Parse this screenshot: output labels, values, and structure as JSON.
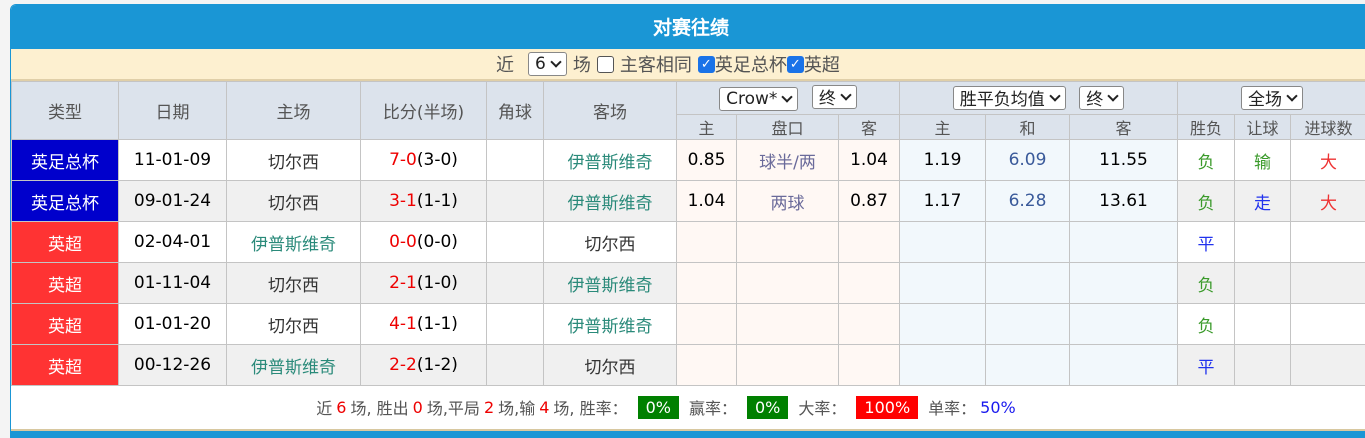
{
  "title": "对赛往绩",
  "filter": {
    "prefix": "近",
    "count": "6",
    "suffix": "场",
    "same_home_away": "主客相同",
    "leagues": [
      {
        "label": "英足总杯",
        "checked": true
      },
      {
        "label": "英超",
        "checked": true
      }
    ]
  },
  "header": {
    "type": "类型",
    "date": "日期",
    "home": "主场",
    "score": "比分(半场)",
    "corner": "角球",
    "away": "客场",
    "company_select": "Crow*",
    "odds_time_select": "终",
    "avg_select": "胜平负均值",
    "avg_time_select": "终",
    "period_select": "全场",
    "sub": [
      "主",
      "盘口",
      "客",
      "主",
      "和",
      "客",
      "胜负",
      "让球",
      "进球数"
    ]
  },
  "rows": [
    {
      "type": "英足总杯",
      "kind": "cup",
      "date": "11-01-09",
      "home": "切尔西",
      "score": "7-0",
      "half": "(3-0)",
      "corner": "",
      "away": "伊普斯维奇",
      "h_home": "0.85",
      "h_line": "球半/两",
      "h_away": "1.04",
      "a_home": "1.19",
      "a_draw": "6.09",
      "a_away": "11.55",
      "wl": "负",
      "hc": "输",
      "goals": "大"
    },
    {
      "type": "英足总杯",
      "kind": "cup",
      "date": "09-01-24",
      "home": "切尔西",
      "score": "3-1",
      "half": "(1-1)",
      "corner": "",
      "away": "伊普斯维奇",
      "h_home": "1.04",
      "h_line": "两球",
      "h_away": "0.87",
      "a_home": "1.17",
      "a_draw": "6.28",
      "a_away": "13.61",
      "wl": "负",
      "hc": "走",
      "goals": "大"
    },
    {
      "type": "英超",
      "kind": "pl",
      "date": "02-04-01",
      "home": "伊普斯维奇",
      "score": "0-0",
      "half": "(0-0)",
      "corner": "",
      "away": "切尔西",
      "h_home": "",
      "h_line": "",
      "h_away": "",
      "a_home": "",
      "a_draw": "",
      "a_away": "",
      "wl": "平",
      "hc": "",
      "goals": ""
    },
    {
      "type": "英超",
      "kind": "pl",
      "date": "01-11-04",
      "home": "切尔西",
      "score": "2-1",
      "half": "(1-0)",
      "corner": "",
      "away": "伊普斯维奇",
      "h_home": "",
      "h_line": "",
      "h_away": "",
      "a_home": "",
      "a_draw": "",
      "a_away": "",
      "wl": "负",
      "hc": "",
      "goals": ""
    },
    {
      "type": "英超",
      "kind": "pl",
      "date": "01-01-20",
      "home": "切尔西",
      "score": "4-1",
      "half": "(1-1)",
      "corner": "",
      "away": "伊普斯维奇",
      "h_home": "",
      "h_line": "",
      "h_away": "",
      "a_home": "",
      "a_draw": "",
      "a_away": "",
      "wl": "负",
      "hc": "",
      "goals": ""
    },
    {
      "type": "英超",
      "kind": "pl",
      "date": "00-12-26",
      "home": "伊普斯维奇",
      "score": "2-2",
      "half": "(1-2)",
      "corner": "",
      "away": "切尔西",
      "h_home": "",
      "h_line": "",
      "h_away": "",
      "a_home": "",
      "a_draw": "",
      "a_away": "",
      "wl": "平",
      "hc": "",
      "goals": ""
    }
  ],
  "summary": {
    "t1": "近",
    "n_total": "6",
    "t2": "场, 胜出",
    "n_win": "0",
    "t3": "场,平局",
    "n_draw": "2",
    "t4": "场,输",
    "n_loss": "4",
    "t5": "场, 胜率：",
    "win_rate": "0%",
    "t6": "赢率：",
    "cover_rate": "0%",
    "t7": "大率：",
    "over_rate": "100%",
    "t8": "单率：",
    "odd_rate": "50%"
  },
  "colors": {
    "accent": "#1a96d5",
    "cup": "#0000cc",
    "league": "#ff3333",
    "win_rate_bg": "#008000",
    "over_rate_bg": "#ff0000"
  }
}
